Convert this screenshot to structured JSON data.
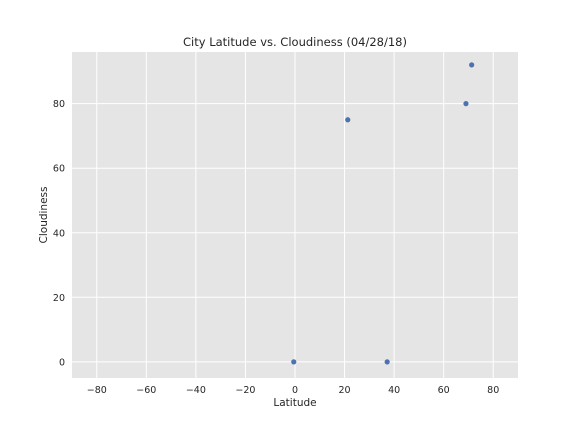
{
  "chart_data": {
    "type": "scatter",
    "title": "City Latitude vs. Cloudiness (04/28/18)",
    "xlabel": "Latitude",
    "ylabel": "Cloudiness",
    "xlim": [
      -90,
      90
    ],
    "ylim": [
      -5,
      96
    ],
    "xticks": [
      -80,
      -60,
      -40,
      -20,
      0,
      20,
      40,
      60,
      80
    ],
    "xtick_labels": [
      "−80",
      "−60",
      "−40",
      "−20",
      "0",
      "20",
      "40",
      "60",
      "80"
    ],
    "yticks": [
      0,
      20,
      40,
      60,
      80
    ],
    "ytick_labels": [
      "0",
      "20",
      "40",
      "60",
      "80"
    ],
    "grid": true,
    "colors": {
      "background": "#e5e5e5",
      "grid": "#ffffff",
      "point": "#4c72b0",
      "text": "#262626"
    },
    "points": [
      {
        "x": -0.5,
        "y": 0
      },
      {
        "x": 21.3,
        "y": 75
      },
      {
        "x": 37.2,
        "y": 0
      },
      {
        "x": 69.0,
        "y": 80
      },
      {
        "x": 71.3,
        "y": 92
      }
    ]
  }
}
